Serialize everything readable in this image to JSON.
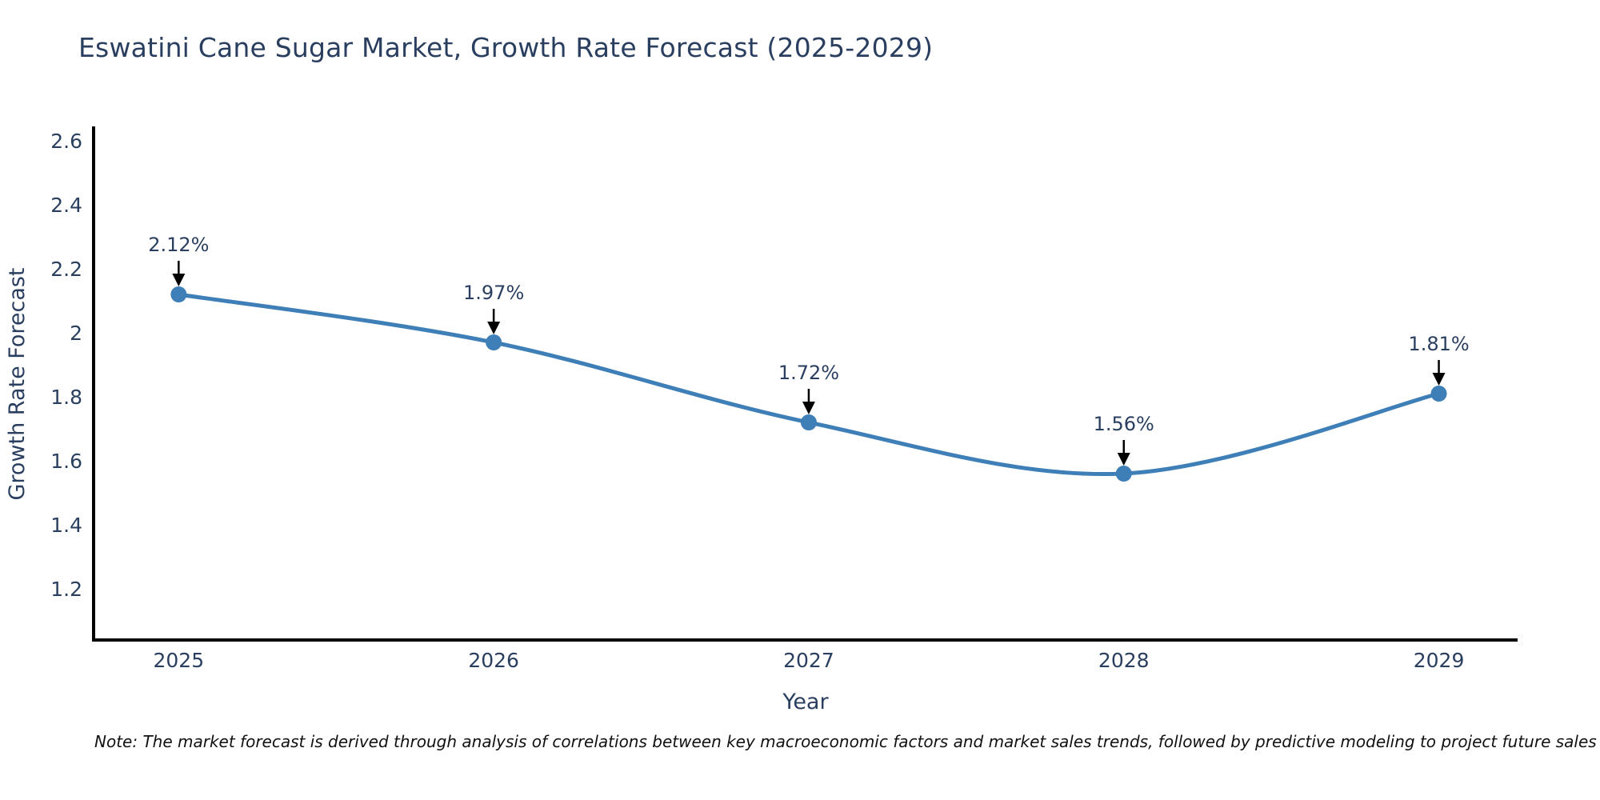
{
  "title": "Eswatini Cane Sugar Market, Growth Rate Forecast (2025-2029)",
  "note": "Note: The market forecast is derived through analysis of correlations between key macroeconomic factors and market sales trends, followed by predictive modeling to project future sales",
  "chart_data": {
    "type": "line",
    "line_shape": "spline",
    "title": "Eswatini Cane Sugar Market, Growth Rate Forecast (2025-2029)",
    "xlabel": "Year",
    "ylabel": "Growth Rate Forecast",
    "x": [
      2025,
      2026,
      2027,
      2028,
      2029
    ],
    "values": [
      2.12,
      1.97,
      1.72,
      1.56,
      1.81
    ],
    "point_labels": [
      "2.12%",
      "1.97%",
      "1.72%",
      "1.56%",
      "1.81%"
    ],
    "x_tick_labels": [
      "2025",
      "2026",
      "2027",
      "2028",
      "2029"
    ],
    "y_tick_values": [
      2.6,
      2.4,
      2.2,
      2.0,
      1.8,
      1.6,
      1.4,
      1.2
    ],
    "y_tick_labels": [
      "2.6",
      "2.4",
      "2.2",
      "2",
      "1.8",
      "1.6",
      "1.4",
      "1.2"
    ],
    "xlim": [
      2024.73,
      2029.25
    ],
    "ylim": [
      1.04,
      2.64
    ],
    "grid": false,
    "legend": false,
    "annotations_have_arrows": true,
    "colors": {
      "line": "#3f7fb8",
      "marker": "#3f7fb8",
      "axis_line": "#000000",
      "tick_text": "#2a3f5f",
      "title_text": "#2a3f5f",
      "annotation_text": "#2a3f5f",
      "arrow": "#000000",
      "note_text": "#111111",
      "background": "#ffffff"
    }
  }
}
